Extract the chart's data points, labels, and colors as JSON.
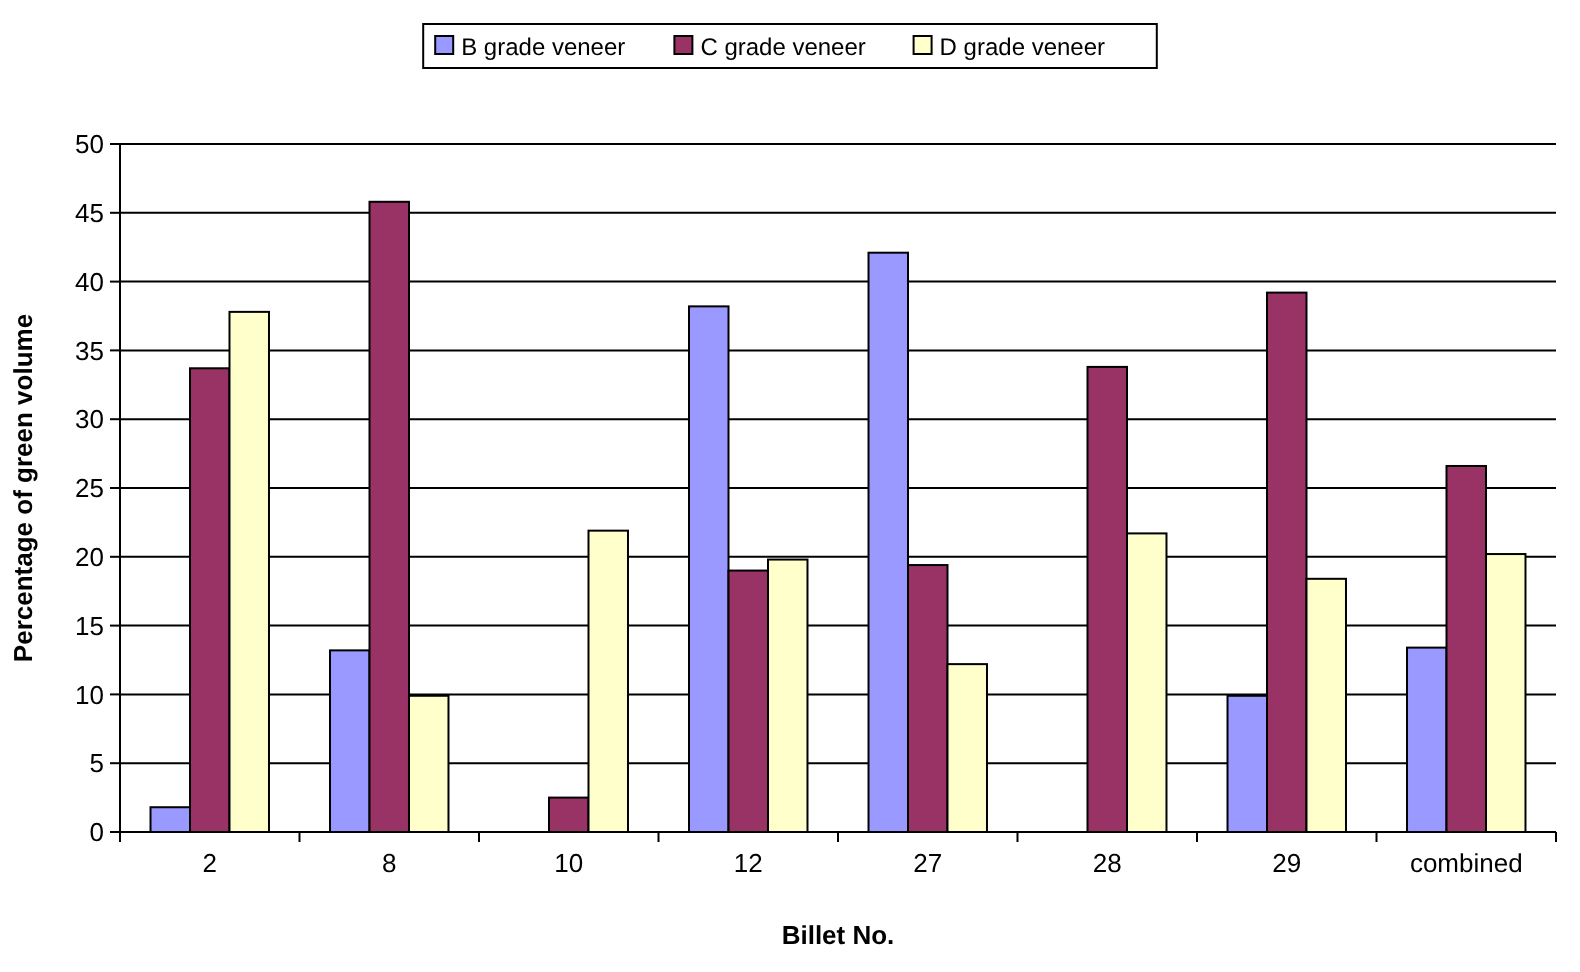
{
  "chart_data": {
    "type": "bar",
    "xlabel": "Billet No.",
    "ylabel": "Percentage of green volume",
    "categories": [
      "2",
      "8",
      "10",
      "12",
      "27",
      "28",
      "29",
      "combined"
    ],
    "series": [
      {
        "name": "B grade veneer",
        "color": "#9999ff",
        "values": [
          1.8,
          13.2,
          0,
          38.2,
          42.1,
          0,
          9.9,
          13.4
        ]
      },
      {
        "name": "C grade veneer",
        "color": "#993366",
        "values": [
          33.7,
          45.8,
          2.5,
          19.0,
          19.4,
          33.8,
          39.2,
          26.6
        ]
      },
      {
        "name": "D grade veneer",
        "color": "#ffffcc",
        "values": [
          37.8,
          9.9,
          21.9,
          19.8,
          12.2,
          21.7,
          18.4,
          20.2
        ]
      }
    ],
    "ylim": [
      0,
      50
    ],
    "yticks": [
      0,
      5,
      10,
      15,
      20,
      25,
      30,
      35,
      40,
      45,
      50
    ],
    "grid": "y",
    "legend": "top"
  }
}
